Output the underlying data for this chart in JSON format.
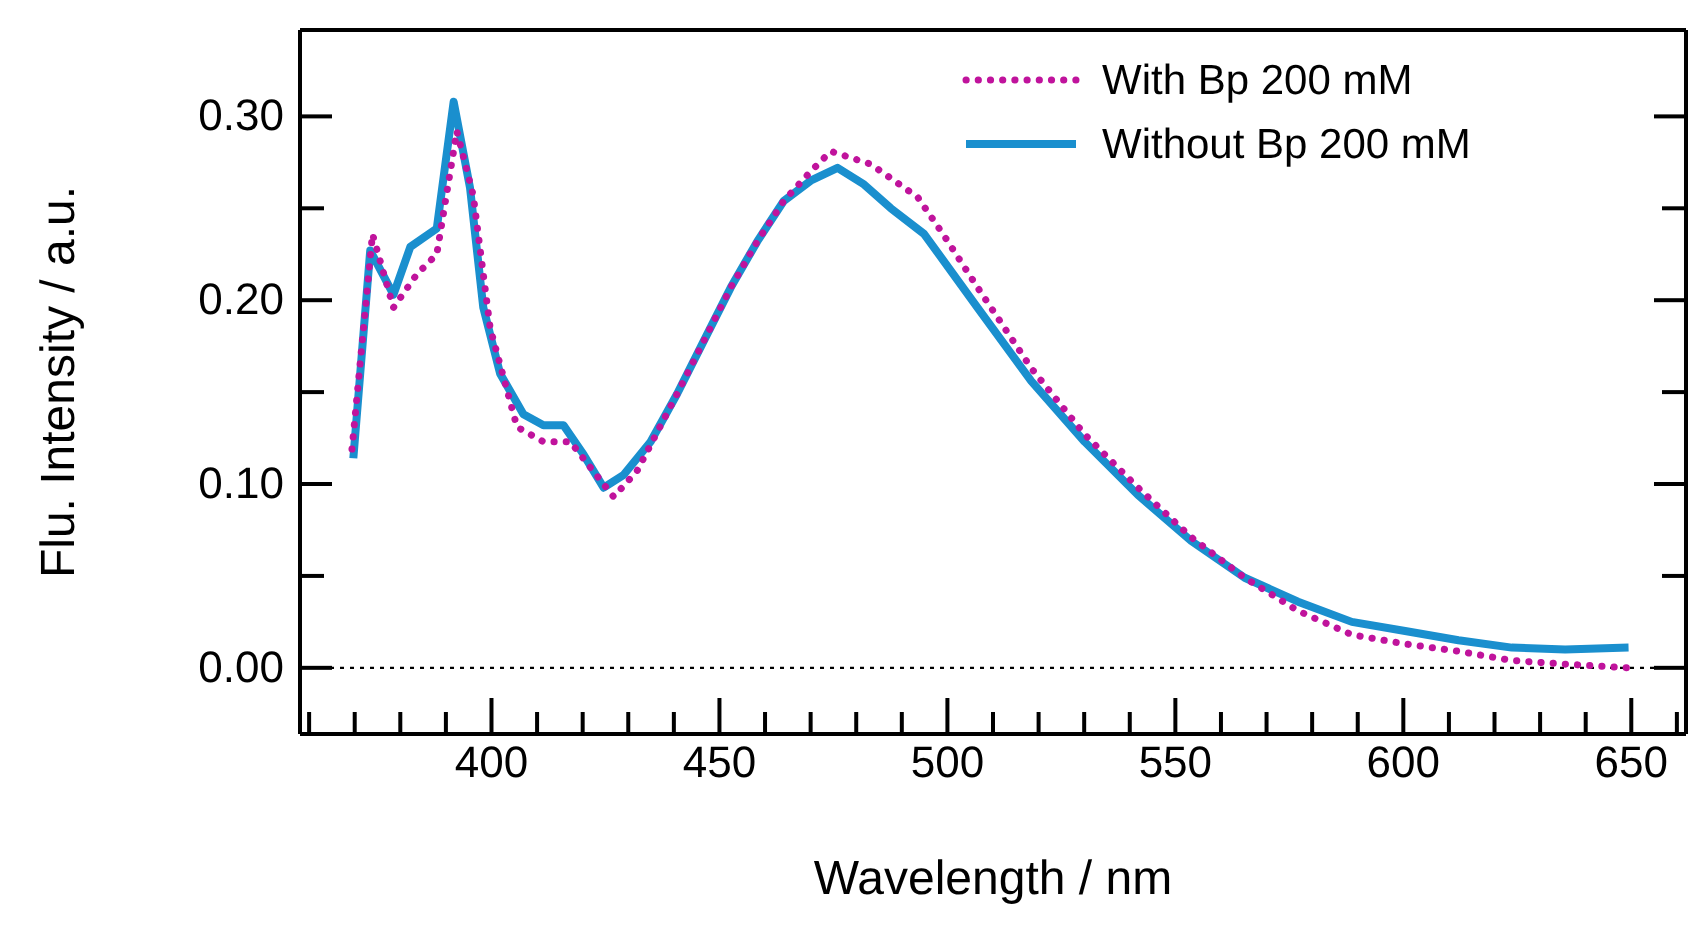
{
  "chart_data": {
    "type": "line",
    "xlabel": "Wavelength / nm",
    "ylabel": "Flu. Intensity / a.u.",
    "xlim": [
      358,
      662
    ],
    "ylim": [
      -0.036,
      0.347
    ],
    "xticks": [
      {
        "value": 360,
        "label": null
      },
      {
        "value": 370,
        "label": null
      },
      {
        "value": 380,
        "label": null
      },
      {
        "value": 390,
        "label": null
      },
      400,
      {
        "value": 410,
        "label": null
      },
      {
        "value": 420,
        "label": null
      },
      {
        "value": 430,
        "label": null
      },
      {
        "value": 440,
        "label": null
      },
      450,
      {
        "value": 460,
        "label": null
      },
      {
        "value": 470,
        "label": null
      },
      {
        "value": 480,
        "label": null
      },
      {
        "value": 490,
        "label": null
      },
      500,
      {
        "value": 510,
        "label": null
      },
      {
        "value": 520,
        "label": null
      },
      {
        "value": 530,
        "label": null
      },
      {
        "value": 540,
        "label": null
      },
      550,
      {
        "value": 560,
        "label": null
      },
      {
        "value": 570,
        "label": null
      },
      {
        "value": 580,
        "label": null
      },
      {
        "value": 590,
        "label": null
      },
      600,
      {
        "value": 610,
        "label": null
      },
      {
        "value": 620,
        "label": null
      },
      {
        "value": 630,
        "label": null
      },
      {
        "value": 640,
        "label": null
      },
      650,
      {
        "value": 660,
        "label": null
      }
    ],
    "yticks": [
      {
        "value": 0,
        "label": "0.00"
      },
      {
        "value": 0.05,
        "label": null
      },
      {
        "value": 0.1,
        "label": "0.10"
      },
      {
        "value": 0.15,
        "label": null
      },
      {
        "value": 0.2,
        "label": "0.20"
      },
      {
        "value": 0.25,
        "label": null
      },
      {
        "value": 0.3,
        "label": "0.30"
      }
    ],
    "grid": false,
    "legend": "top right",
    "marker": "none",
    "ref_lines": [
      {
        "axis": "y",
        "value": 0,
        "color": "#000000",
        "line_style": "dotted"
      }
    ],
    "series": [
      {
        "name": "With Bp 200 mM",
        "color": "#c0139c",
        "line_style": "dotted",
        "x": [
          369.4,
          373.9,
          378.5,
          383.6,
          388,
          392.4,
          396,
          399.7,
          405.6,
          411.4,
          417.3,
          421.7,
          426.8,
          431.9,
          440.7,
          446.6,
          452.5,
          458.3,
          464.1,
          470,
          474.4,
          483.2,
          493.5,
          499.3,
          506.6,
          518.4,
          530.1,
          541.8,
          553.5,
          565.2,
          576.9,
          588.7,
          600.4,
          612.1,
          623.8,
          635.5,
          649.4
        ],
        "values": [
          0.119,
          0.236,
          0.196,
          0.214,
          0.225,
          0.292,
          0.257,
          0.185,
          0.131,
          0.123,
          0.123,
          0.109,
          0.093,
          0.107,
          0.149,
          0.178,
          0.207,
          0.232,
          0.254,
          0.27,
          0.281,
          0.274,
          0.256,
          0.235,
          0.207,
          0.163,
          0.127,
          0.098,
          0.071,
          0.049,
          0.031,
          0.018,
          0.013,
          0.009,
          0.004,
          0.002,
          0.0
        ]
      },
      {
        "name": "Without Bp 200 mM",
        "color": "#1a8fce",
        "line_style": "solid",
        "x": [
          369.7,
          373.4,
          378.5,
          382.2,
          388,
          391.7,
          395.3,
          398.2,
          401.9,
          407,
          411.4,
          415.8,
          420.2,
          424.6,
          429,
          434.9,
          440.7,
          446.6,
          452.5,
          458.3,
          464.1,
          470,
          475.9,
          481.7,
          487.6,
          494.9,
          506.6,
          518.4,
          530.1,
          541.8,
          553.5,
          565.2,
          576.9,
          588.7,
          600.4,
          612.1,
          623.8,
          635.5,
          649.4
        ],
        "values": [
          0.114,
          0.227,
          0.203,
          0.229,
          0.239,
          0.308,
          0.261,
          0.196,
          0.16,
          0.138,
          0.132,
          0.132,
          0.116,
          0.098,
          0.105,
          0.123,
          0.149,
          0.178,
          0.207,
          0.232,
          0.254,
          0.265,
          0.272,
          0.263,
          0.25,
          0.236,
          0.196,
          0.156,
          0.123,
          0.094,
          0.069,
          0.049,
          0.036,
          0.025,
          0.02,
          0.015,
          0.011,
          0.01,
          0.011
        ]
      }
    ]
  }
}
